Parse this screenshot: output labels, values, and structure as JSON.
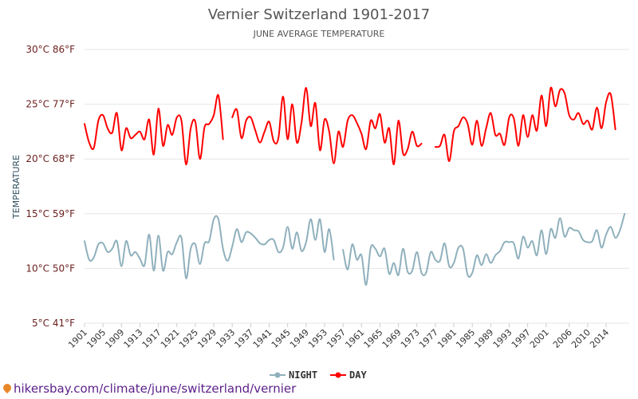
{
  "header": {
    "title": "Vernier Switzerland 1901-2017",
    "subtitle": "JUNE AVERAGE TEMPERATURE"
  },
  "footer": {
    "url": "hikersbay.com/climate/june/switzerland/vernier"
  },
  "colors": {
    "day": "#ff0000",
    "night": "#8fb0bc",
    "grid": "#e6e6e6",
    "ytick": "#6b1f1f"
  },
  "chart_data": {
    "type": "line",
    "title": "Vernier Switzerland 1901-2017",
    "subtitle": "JUNE AVERAGE TEMPERATURE",
    "ylabel": "TEMPERATURE",
    "xlabel": "",
    "ylim": [
      5,
      30
    ],
    "y_ticks": [
      "5°C 41°F",
      "10°C 50°F",
      "15°C 59°F",
      "20°C 68°F",
      "25°C 77°F",
      "30°C 86°F"
    ],
    "y_tick_values": [
      5,
      10,
      15,
      20,
      25,
      30
    ],
    "x_ticks": [
      "1901",
      "1905",
      "1909",
      "1913",
      "1917",
      "1921",
      "1925",
      "1929",
      "1933",
      "1937",
      "1941",
      "1945",
      "1949",
      "1953",
      "1957",
      "1961",
      "1965",
      "1969",
      "1973",
      "1977",
      "1981",
      "1985",
      "1989",
      "1993",
      "1997",
      "2001",
      "2006",
      "2010",
      "2014"
    ],
    "xlim": [
      1901,
      2019
    ],
    "grid": true,
    "legend_position": "bottom-center",
    "x": [
      1901,
      1902,
      1903,
      1904,
      1905,
      1906,
      1907,
      1908,
      1909,
      1910,
      1911,
      1912,
      1913,
      1914,
      1915,
      1916,
      1917,
      1918,
      1919,
      1920,
      1921,
      1922,
      1923,
      1924,
      1925,
      1926,
      1927,
      1928,
      1929,
      1930,
      1931,
      1932,
      1933,
      1934,
      1935,
      1936,
      1937,
      1938,
      1939,
      1940,
      1941,
      1942,
      1943,
      1944,
      1945,
      1946,
      1947,
      1948,
      1949,
      1950,
      1951,
      1952,
      1953,
      1954,
      1955,
      1956,
      1957,
      1958,
      1959,
      1960,
      1961,
      1962,
      1963,
      1964,
      1965,
      1966,
      1967,
      1968,
      1969,
      1970,
      1971,
      1972,
      1973,
      1974,
      1975,
      1976,
      1977,
      1978,
      1979,
      1980,
      1981,
      1982,
      1983,
      1984,
      1985,
      1986,
      1987,
      1988,
      1989,
      1990,
      1991,
      1992,
      1993,
      1994,
      1995,
      1996,
      1997,
      1998,
      1999,
      2000,
      2001,
      2002,
      2003,
      2004,
      2005,
      2006,
      2007,
      2008,
      2009,
      2010,
      2011,
      2012,
      2013,
      2014,
      2015,
      2016,
      2017,
      2018
    ],
    "series": [
      {
        "name": "NIGHT",
        "color": "#8fb0bc",
        "values": [
          12.5,
          10.8,
          11.0,
          12.2,
          12.3,
          11.5,
          11.8,
          12.5,
          10.2,
          12.5,
          11.2,
          11.5,
          10.9,
          10.3,
          13.1,
          9.8,
          13.0,
          9.8,
          11.5,
          11.3,
          12.4,
          12.8,
          9.1,
          11.8,
          12.2,
          10.4,
          12.3,
          12.5,
          14.5,
          14.5,
          11.8,
          10.7,
          12.0,
          13.6,
          12.4,
          13.3,
          13.2,
          12.8,
          12.3,
          12.2,
          12.6,
          12.6,
          11.5,
          11.9,
          13.8,
          11.8,
          13.3,
          11.6,
          12.4,
          14.5,
          12.6,
          14.5,
          11.5,
          13.6,
          10.8,
          null,
          11.7,
          9.9,
          12.2,
          10.8,
          11.2,
          8.5,
          11.9,
          11.8,
          11.1,
          11.8,
          9.5,
          10.5,
          9.4,
          11.8,
          9.7,
          9.8,
          11.5,
          9.6,
          9.6,
          11.5,
          10.8,
          10.7,
          12.3,
          10.2,
          10.5,
          11.9,
          11.8,
          9.4,
          9.6,
          11.2,
          10.3,
          11.3,
          10.5,
          11.2,
          11.6,
          12.4,
          12.4,
          12.3,
          10.9,
          12.9,
          11.9,
          12.5,
          11.2,
          13.5,
          11.3,
          13.6,
          12.8,
          14.6,
          12.9,
          13.7,
          13.5,
          13.4,
          12.6,
          12.4,
          12.5,
          13.5,
          11.9,
          13.1,
          13.8,
          12.8,
          13.5,
          15.0
        ]
      },
      {
        "name": "DAY",
        "color": "#ff0000",
        "values": [
          23.2,
          21.5,
          21.0,
          23.5,
          24.0,
          22.8,
          22.4,
          24.2,
          20.8,
          22.8,
          21.9,
          22.2,
          22.5,
          21.8,
          23.6,
          20.4,
          24.6,
          21.2,
          23.1,
          22.2,
          23.8,
          23.5,
          19.5,
          22.8,
          23.4,
          20.0,
          22.9,
          23.2,
          24.0,
          25.8,
          21.8,
          null,
          23.8,
          24.5,
          21.9,
          23.5,
          23.8,
          22.6,
          21.5,
          22.5,
          23.4,
          21.6,
          21.9,
          25.7,
          21.8,
          25.0,
          21.5,
          23.3,
          26.5,
          23.0,
          25.1,
          20.8,
          23.6,
          22.5,
          19.6,
          22.5,
          21.1,
          23.5,
          24.0,
          23.3,
          22.3,
          20.9,
          23.5,
          22.8,
          24.1,
          21.5,
          22.8,
          19.5,
          23.5,
          20.5,
          20.9,
          22.5,
          21.2,
          21.4,
          null,
          null,
          21.1,
          21.2,
          22.2,
          19.8,
          22.5,
          23.0,
          23.8,
          23.2,
          21.3,
          23.5,
          21.2,
          22.8,
          24.2,
          22.2,
          22.3,
          21.3,
          23.8,
          23.7,
          21.2,
          24.0,
          22.0,
          24.0,
          22.6,
          25.8,
          23.0,
          26.5,
          24.8,
          26.3,
          26.0,
          24.0,
          23.6,
          24.2,
          23.2,
          23.5,
          22.7,
          24.7,
          22.8,
          25.2,
          25.9,
          22.7,
          null,
          null
        ]
      }
    ]
  }
}
